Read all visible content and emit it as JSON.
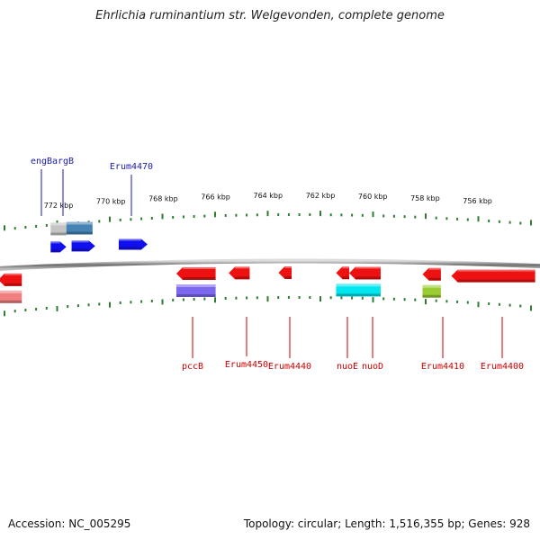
{
  "title": "Ehrlichia ruminantium str. Welgevonden, complete genome",
  "footer": {
    "accession": "Accession: NC_005295",
    "topology": "Topology: circular; Length: 1,516,355 bp; Genes: 928"
  },
  "colors": {
    "backbone": "#7a7a7a",
    "tick": "#2e7d32",
    "forward_label": "#1a1aa8",
    "reverse_label": "#cc0000"
  },
  "chart_data": {
    "type": "genome_map",
    "scale_unit": "kbp",
    "scale_ticks": [
      {
        "label": "772 kbp",
        "pos_kbp": 772
      },
      {
        "label": "770 kbp",
        "pos_kbp": 770
      },
      {
        "label": "768 kbp",
        "pos_kbp": 768
      },
      {
        "label": "766 kbp",
        "pos_kbp": 766
      },
      {
        "label": "764 kbp",
        "pos_kbp": 764
      },
      {
        "label": "762 kbp",
        "pos_kbp": 762
      },
      {
        "label": "760 kbp",
        "pos_kbp": 760
      },
      {
        "label": "758 kbp",
        "pos_kbp": 758
      },
      {
        "label": "756 kbp",
        "pos_kbp": 756
      }
    ],
    "forward_features": [
      {
        "label": "engB",
        "start_kbp": 772.3,
        "end_kbp": 771.7,
        "color": "#1010ee",
        "row": 0
      },
      {
        "label": "argB",
        "start_kbp": 771.5,
        "end_kbp": 770.6,
        "color": "#1010ee",
        "row": 0
      },
      {
        "label": "",
        "start_kbp": 772.3,
        "end_kbp": 771.7,
        "color": "#c4c4c4",
        "row": -1
      },
      {
        "label": "",
        "start_kbp": 771.7,
        "end_kbp": 770.7,
        "color": "#4682b4",
        "row": -1
      },
      {
        "label": "Erum4470",
        "start_kbp": 769.7,
        "end_kbp": 768.6,
        "color": "#1010ee",
        "row": 0
      }
    ],
    "reverse_features": [
      {
        "label": "",
        "start_kbp": 774.3,
        "end_kbp": 773.4,
        "color": "#ee1111",
        "row": 0
      },
      {
        "label": "",
        "start_kbp": 774.3,
        "end_kbp": 773.4,
        "color": "#f08080",
        "row": 1
      },
      {
        "label": "pccB",
        "start_kbp": 767.5,
        "end_kbp": 766.0,
        "color": "#ee1111",
        "row": 0
      },
      {
        "label": "",
        "start_kbp": 767.5,
        "end_kbp": 766.0,
        "color": "#7b68ee",
        "row": 1
      },
      {
        "label": "Erum4450",
        "start_kbp": 765.5,
        "end_kbp": 764.7,
        "color": "#ee1111",
        "row": 0
      },
      {
        "label": "Erum4440",
        "start_kbp": 763.6,
        "end_kbp": 763.1,
        "color": "#ee1111",
        "row": 0
      },
      {
        "label": "nuoE",
        "start_kbp": 761.4,
        "end_kbp": 760.9,
        "color": "#ee1111",
        "row": 0
      },
      {
        "label": "nuoD",
        "start_kbp": 760.9,
        "end_kbp": 759.7,
        "color": "#ee1111",
        "row": 0
      },
      {
        "label": "",
        "start_kbp": 761.4,
        "end_kbp": 759.7,
        "color": "#00e5ee",
        "row": 1
      },
      {
        "label": "Erum4410",
        "start_kbp": 758.1,
        "end_kbp": 757.4,
        "color": "#ee1111",
        "row": 0
      },
      {
        "label": "",
        "start_kbp": 758.1,
        "end_kbp": 757.4,
        "color": "#9acd32",
        "row": 1
      },
      {
        "label": "Erum4400",
        "start_kbp": 757.0,
        "end_kbp": 753.8,
        "color": "#ee1111",
        "row": 0
      }
    ]
  }
}
